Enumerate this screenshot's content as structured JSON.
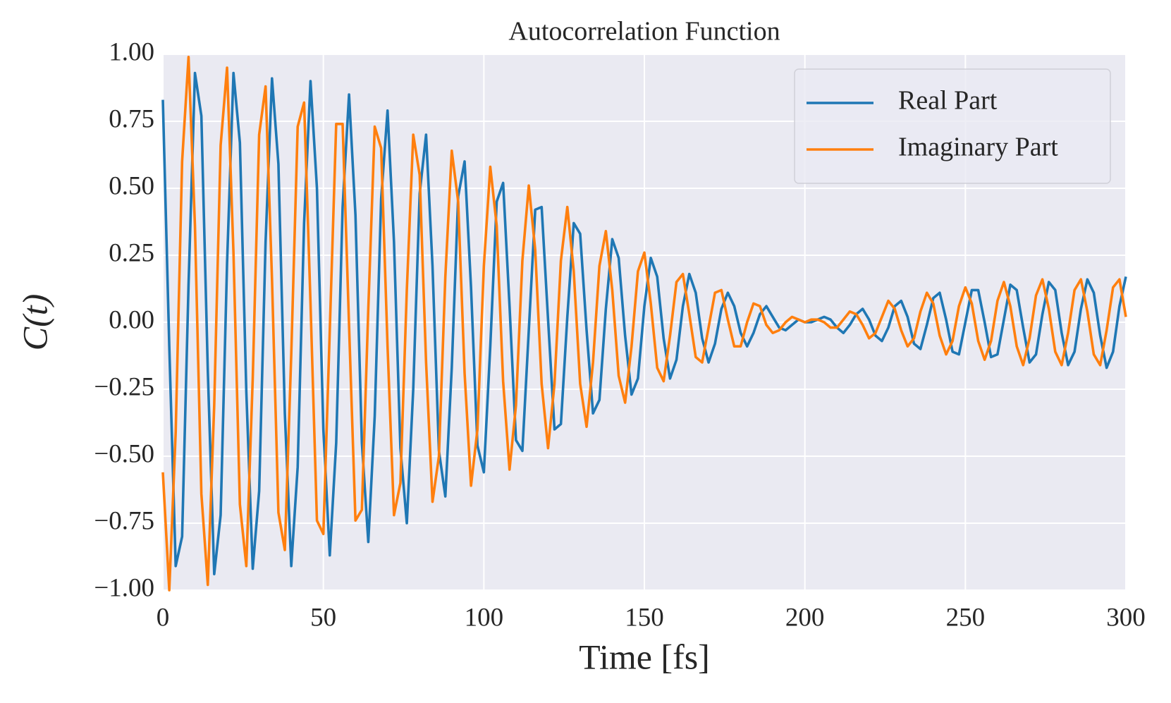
{
  "chart_data": {
    "type": "line",
    "title": "Autocorrelation Function",
    "xlabel": "Time [fs]",
    "ylabel": "C(t)",
    "grid": true,
    "legend": "upper right",
    "background": "#eaeaf2",
    "xlim": [
      0,
      300
    ],
    "ylim": [
      -1,
      1
    ],
    "xticks": [
      0,
      50,
      100,
      150,
      200,
      250,
      300
    ],
    "yticks": [
      {
        "value": -1,
        "label": "−1.00"
      },
      {
        "value": -0.75,
        "label": "−0.75"
      },
      {
        "value": -0.5,
        "label": "−0.50"
      },
      {
        "value": -0.25,
        "label": "−0.25"
      },
      {
        "value": 0,
        "label": "0.00"
      },
      {
        "value": 0.25,
        "label": "0.25"
      },
      {
        "value": 0.5,
        "label": "0.50"
      },
      {
        "value": 0.75,
        "label": "0.75"
      },
      {
        "value": 1,
        "label": "1.00"
      }
    ],
    "x": [
      0,
      2,
      4,
      6,
      8,
      10,
      12,
      14,
      16,
      18,
      20,
      22,
      24,
      26,
      28,
      30,
      32,
      34,
      36,
      38,
      40,
      42,
      44,
      46,
      48,
      50,
      52,
      54,
      56,
      58,
      60,
      62,
      64,
      66,
      68,
      70,
      72,
      74,
      76,
      78,
      80,
      82,
      84,
      86,
      88,
      90,
      92,
      94,
      96,
      98,
      100,
      102,
      104,
      106,
      108,
      110,
      112,
      114,
      116,
      118,
      120,
      122,
      124,
      126,
      128,
      130,
      132,
      134,
      136,
      138,
      140,
      142,
      144,
      146,
      148,
      150,
      152,
      154,
      156,
      158,
      160,
      162,
      164,
      166,
      168,
      170,
      172,
      174,
      176,
      178,
      180,
      182,
      184,
      186,
      188,
      190,
      192,
      194,
      196,
      198,
      200,
      202,
      204,
      206,
      208,
      210,
      212,
      214,
      216,
      218,
      220,
      222,
      224,
      226,
      228,
      230,
      232,
      234,
      236,
      238,
      240,
      242,
      244,
      246,
      248,
      250,
      252,
      254,
      256,
      258,
      260,
      262,
      264,
      266,
      268,
      270,
      272,
      274,
      276,
      278,
      280,
      282,
      284,
      286,
      288,
      290,
      292,
      294,
      296,
      298,
      300
    ],
    "series": [
      {
        "name": "Real Part",
        "color": "#1f77b4",
        "values": [
          0.83,
          -0.09,
          -0.91,
          -0.8,
          0.14,
          0.93,
          0.77,
          -0.18,
          -0.94,
          -0.72,
          0.22,
          0.93,
          0.67,
          -0.26,
          -0.92,
          -0.63,
          0.3,
          0.91,
          0.59,
          -0.34,
          -0.91,
          -0.54,
          0.37,
          0.9,
          0.5,
          -0.4,
          -0.87,
          -0.45,
          0.43,
          0.85,
          0.4,
          -0.45,
          -0.82,
          -0.35,
          0.46,
          0.79,
          0.3,
          -0.47,
          -0.75,
          -0.25,
          0.48,
          0.7,
          0.21,
          -0.48,
          -0.65,
          -0.17,
          0.47,
          0.6,
          0.13,
          -0.46,
          -0.56,
          -0.09,
          0.45,
          0.52,
          0.06,
          -0.44,
          -0.48,
          -0.03,
          0.42,
          0.43,
          0.01,
          -0.4,
          -0.38,
          0.02,
          0.37,
          0.33,
          -0.03,
          -0.34,
          -0.29,
          0.05,
          0.31,
          0.24,
          -0.05,
          -0.27,
          -0.21,
          0.06,
          0.24,
          0.17,
          -0.06,
          -0.21,
          -0.14,
          0.06,
          0.18,
          0.11,
          -0.06,
          -0.15,
          -0.08,
          0.05,
          0.11,
          0.06,
          -0.04,
          -0.09,
          -0.04,
          0.03,
          0.06,
          0.02,
          -0.02,
          -0.03,
          -0.01,
          0.01,
          0.0,
          0.0,
          0.01,
          0.02,
          0.01,
          -0.02,
          -0.04,
          -0.01,
          0.03,
          0.05,
          0.01,
          -0.05,
          -0.07,
          -0.02,
          0.06,
          0.08,
          0.02,
          -0.08,
          -0.1,
          -0.01,
          0.09,
          0.11,
          0.01,
          -0.11,
          -0.12,
          0.0,
          0.12,
          0.12,
          0.0,
          -0.13,
          -0.12,
          0.01,
          0.14,
          0.12,
          -0.02,
          -0.15,
          -0.12,
          0.03,
          0.15,
          0.12,
          -0.04,
          -0.16,
          -0.11,
          0.05,
          0.16,
          0.11,
          -0.05,
          -0.17,
          -0.11,
          0.06,
          0.17
        ]
      },
      {
        "name": "Imaginary Part",
        "color": "#ff7f0e",
        "values": [
          -0.56,
          -1.0,
          -0.41,
          0.6,
          0.99,
          0.36,
          -0.64,
          -0.98,
          -0.31,
          0.66,
          0.95,
          0.26,
          -0.68,
          -0.91,
          -0.21,
          0.7,
          0.88,
          0.16,
          -0.71,
          -0.85,
          -0.12,
          0.73,
          0.82,
          0.07,
          -0.74,
          -0.79,
          -0.03,
          0.74,
          0.74,
          -0.01,
          -0.74,
          -0.7,
          0.05,
          0.73,
          0.65,
          -0.09,
          -0.72,
          -0.6,
          0.12,
          0.7,
          0.55,
          -0.15,
          -0.67,
          -0.5,
          0.17,
          0.64,
          0.45,
          -0.19,
          -0.61,
          -0.4,
          0.21,
          0.58,
          0.36,
          -0.22,
          -0.55,
          -0.31,
          0.23,
          0.51,
          0.27,
          -0.23,
          -0.47,
          -0.23,
          0.23,
          0.43,
          0.19,
          -0.23,
          -0.39,
          -0.15,
          0.21,
          0.34,
          0.12,
          -0.2,
          -0.3,
          -0.09,
          0.19,
          0.26,
          0.07,
          -0.17,
          -0.22,
          -0.05,
          0.15,
          0.18,
          0.03,
          -0.13,
          -0.15,
          -0.02,
          0.11,
          0.12,
          0.01,
          -0.09,
          -0.09,
          0.0,
          0.07,
          0.06,
          -0.01,
          -0.04,
          -0.03,
          0.0,
          0.02,
          0.01,
          0.0,
          0.01,
          0.01,
          0.0,
          -0.02,
          -0.02,
          0.01,
          0.04,
          0.03,
          -0.01,
          -0.06,
          -0.04,
          0.02,
          0.08,
          0.05,
          -0.03,
          -0.09,
          -0.06,
          0.04,
          0.11,
          0.07,
          -0.05,
          -0.12,
          -0.07,
          0.06,
          0.13,
          0.07,
          -0.07,
          -0.14,
          -0.07,
          0.08,
          0.15,
          0.06,
          -0.09,
          -0.16,
          -0.06,
          0.1,
          0.16,
          0.05,
          -0.11,
          -0.16,
          -0.04,
          0.12,
          0.16,
          0.04,
          -0.12,
          -0.16,
          -0.03,
          0.13,
          0.16,
          0.02
        ]
      }
    ]
  }
}
